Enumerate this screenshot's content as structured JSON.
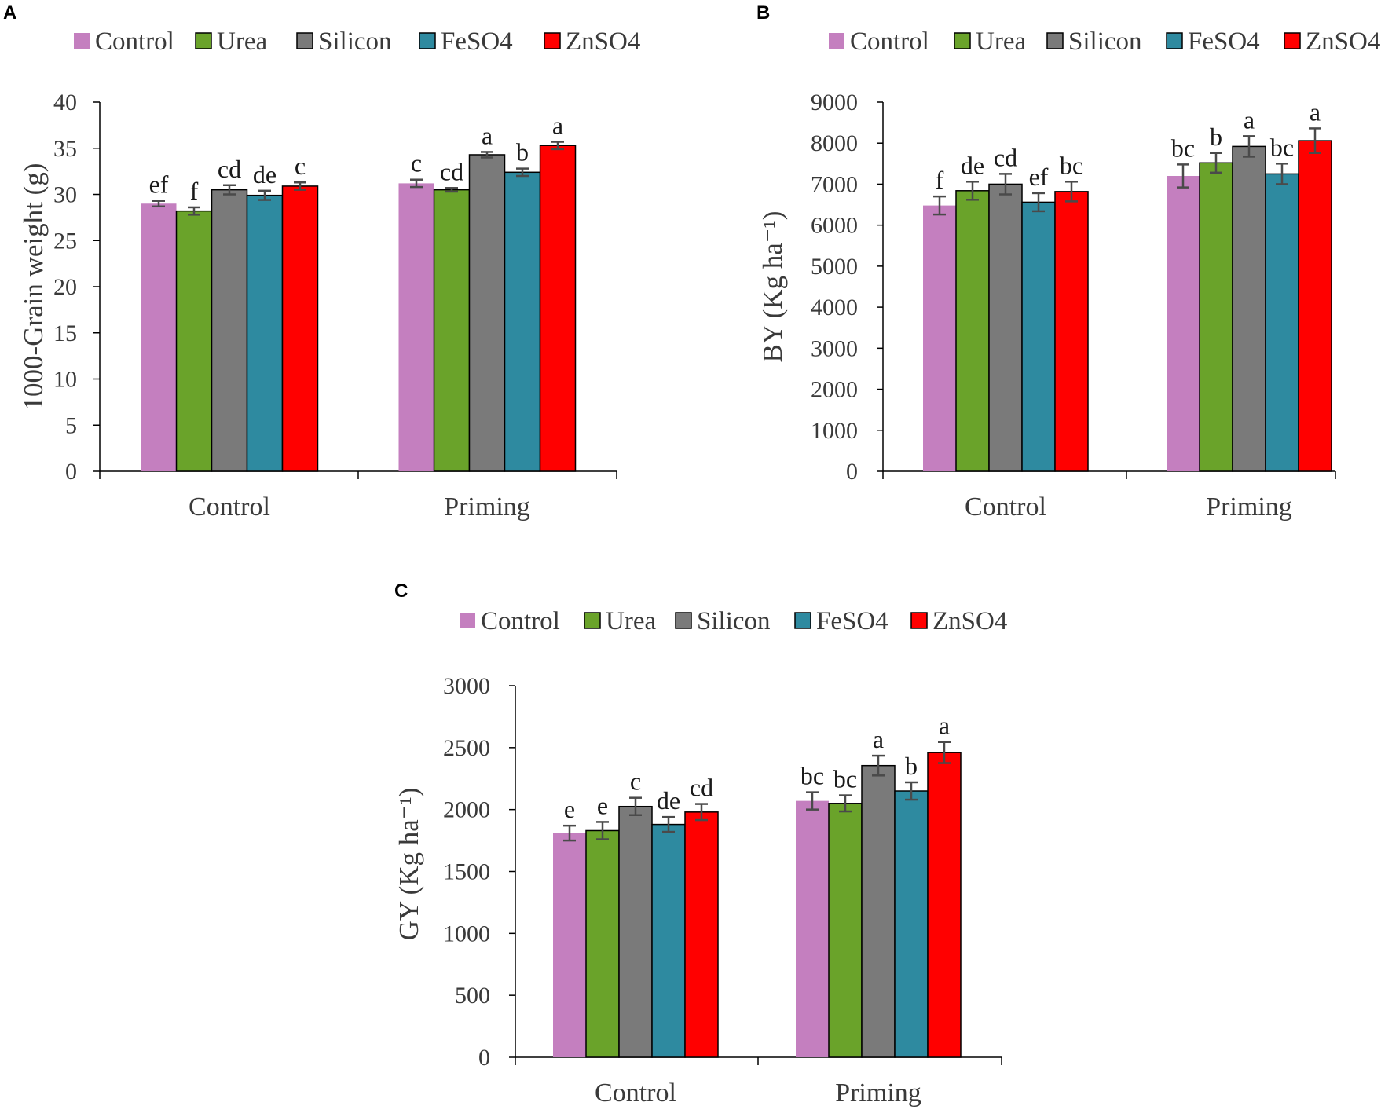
{
  "colors": {
    "Control": "#c47fbf",
    "Urea": "#6aa32a",
    "Silicon": "#7a7a7a",
    "FeSO4": "#2e8aa0",
    "ZnSO4": "#ff0000"
  },
  "chart_data": [
    {
      "panel": "A",
      "type": "bar",
      "categories": [
        "Control",
        "Priming"
      ],
      "ylabel": "1000-Grain weight (g)",
      "ylim": [
        0,
        40
      ],
      "yticks": [
        0,
        5,
        10,
        15,
        20,
        25,
        30,
        35,
        40
      ],
      "series": [
        {
          "name": "Control",
          "values": [
            29.0,
            31.2
          ],
          "errors": [
            0.3,
            0.4
          ],
          "letters": [
            "ef",
            "c"
          ]
        },
        {
          "name": "Urea",
          "values": [
            28.2,
            30.5
          ],
          "errors": [
            0.4,
            0.2
          ],
          "letters": [
            "f",
            "cd"
          ]
        },
        {
          "name": "Silicon",
          "values": [
            30.5,
            34.3
          ],
          "errors": [
            0.5,
            0.3
          ],
          "letters": [
            "cd",
            "a"
          ]
        },
        {
          "name": "FeSO4",
          "values": [
            29.9,
            32.4
          ],
          "errors": [
            0.5,
            0.4
          ],
          "letters": [
            "de",
            "b"
          ]
        },
        {
          "name": "ZnSO4",
          "values": [
            30.9,
            35.3
          ],
          "errors": [
            0.4,
            0.4
          ],
          "letters": [
            "c",
            "a"
          ]
        }
      ]
    },
    {
      "panel": "B",
      "type": "bar",
      "categories": [
        "Control",
        "Priming"
      ],
      "ylabel": "BY (Kg ha⁻¹)",
      "ylim": [
        0,
        9000
      ],
      "yticks": [
        0,
        1000,
        2000,
        3000,
        4000,
        5000,
        6000,
        7000,
        8000,
        9000
      ],
      "series": [
        {
          "name": "Control",
          "values": [
            6480,
            7200
          ],
          "errors": [
            220,
            280
          ],
          "letters": [
            "f",
            "bc"
          ]
        },
        {
          "name": "Urea",
          "values": [
            6840,
            7520
          ],
          "errors": [
            220,
            240
          ],
          "letters": [
            "de",
            "b"
          ]
        },
        {
          "name": "Silicon",
          "values": [
            7000,
            7920
          ],
          "errors": [
            250,
            250
          ],
          "letters": [
            "cd",
            "a"
          ]
        },
        {
          "name": "FeSO4",
          "values": [
            6560,
            7250
          ],
          "errors": [
            220,
            250
          ],
          "letters": [
            "ef",
            "bc"
          ]
        },
        {
          "name": "ZnSO4",
          "values": [
            6820,
            8060
          ],
          "errors": [
            240,
            300
          ],
          "letters": [
            "bc",
            "a"
          ]
        }
      ]
    },
    {
      "panel": "C",
      "type": "bar",
      "categories": [
        "Control",
        "Priming"
      ],
      "ylabel": "GY (Kg ha⁻¹)",
      "ylim": [
        0,
        3000
      ],
      "yticks": [
        0,
        500,
        1000,
        1500,
        2000,
        2500,
        3000
      ],
      "series": [
        {
          "name": "Control",
          "values": [
            1810,
            2070
          ],
          "errors": [
            60,
            70
          ],
          "letters": [
            "e",
            "bc"
          ]
        },
        {
          "name": "Urea",
          "values": [
            1830,
            2050
          ],
          "errors": [
            70,
            65
          ],
          "letters": [
            "e",
            "bc"
          ]
        },
        {
          "name": "Silicon",
          "values": [
            2025,
            2355
          ],
          "errors": [
            70,
            80
          ],
          "letters": [
            "c",
            "a"
          ]
        },
        {
          "name": "FeSO4",
          "values": [
            1880,
            2150
          ],
          "errors": [
            60,
            70
          ],
          "letters": [
            "de",
            "b"
          ]
        },
        {
          "name": "ZnSO4",
          "values": [
            1980,
            2460
          ],
          "errors": [
            65,
            85
          ],
          "letters": [
            "cd",
            "a"
          ]
        }
      ]
    }
  ]
}
